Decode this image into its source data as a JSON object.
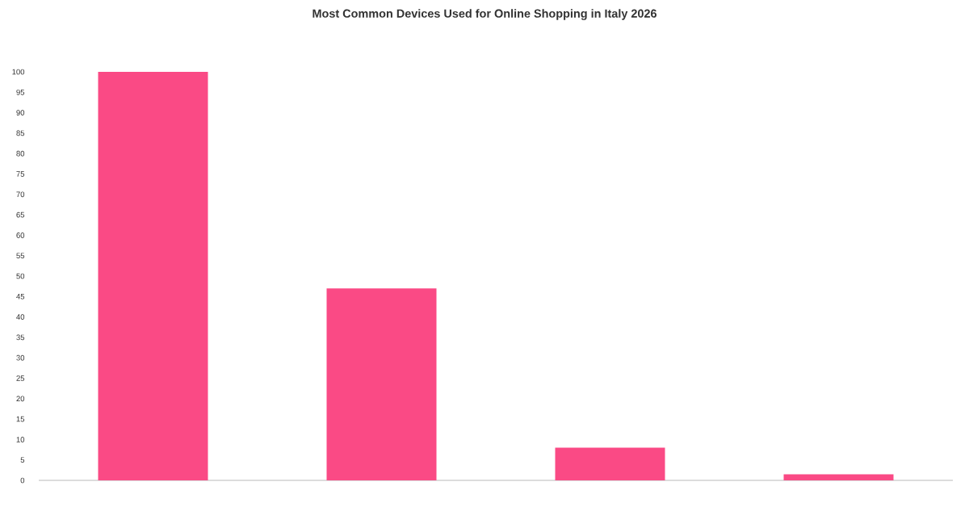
{
  "chart_data": {
    "type": "bar",
    "title": "Most Common Devices Used for Online Shopping in Italy 2026",
    "categories": [
      null,
      null,
      null,
      null
    ],
    "values": [
      100,
      47,
      8,
      1.5
    ],
    "color": "#fa4a85",
    "ylim": [
      0,
      100
    ],
    "yticks": [
      0,
      5,
      10,
      15,
      20,
      25,
      30,
      35,
      40,
      45,
      50,
      55,
      60,
      65,
      70,
      75,
      80,
      85,
      90,
      95,
      100
    ],
    "grid": false
  }
}
